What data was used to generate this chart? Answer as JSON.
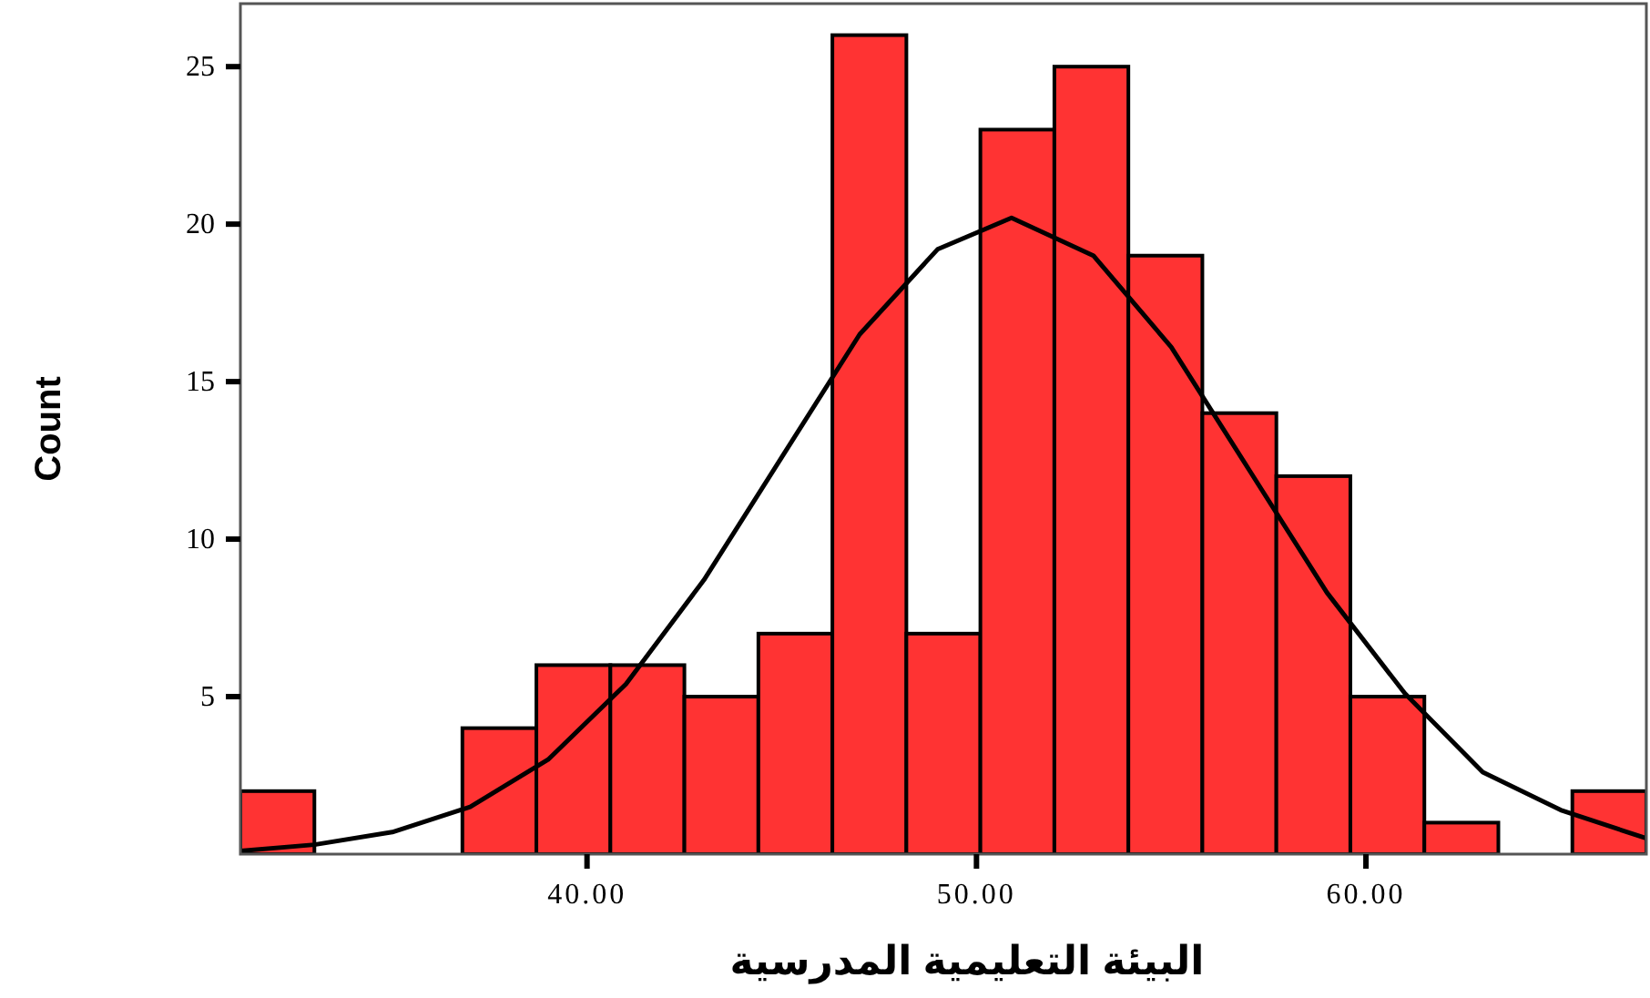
{
  "chart_data": {
    "type": "histogram",
    "xlabel": "البيئة التعليمية المدرسية",
    "ylabel": "Count",
    "bins": [
      31.1,
      33.0,
      34.9,
      36.8,
      38.7,
      40.6,
      42.5,
      44.4,
      46.3,
      48.2,
      50.1,
      52.0,
      53.9,
      55.8,
      57.7,
      59.6,
      61.5,
      63.4,
      65.3,
      67.2
    ],
    "values": [
      2,
      0,
      0,
      4,
      6,
      6,
      5,
      7,
      26,
      7,
      23,
      25,
      19,
      14,
      12,
      5,
      1,
      0,
      2
    ],
    "color": "#ff3333",
    "series": [
      {
        "type": "line",
        "color": "#000000",
        "x": [
          31.1,
          33,
          35,
          37,
          39,
          41,
          43,
          45,
          47,
          49,
          50.9,
          53,
          55,
          57,
          59,
          61,
          63,
          65,
          67.2
        ],
        "values": [
          0.1,
          0.3,
          0.7,
          1.5,
          3.0,
          5.4,
          8.7,
          12.6,
          16.5,
          19.2,
          20.2,
          19.0,
          16.1,
          12.2,
          8.3,
          5.1,
          2.6,
          1.4,
          0.5
        ]
      }
    ],
    "xlim": [
      31.1,
      67.2
    ],
    "ylim": [
      0,
      27
    ],
    "xticks": [
      {
        "value": 40,
        "label": "40.00"
      },
      {
        "value": 50,
        "label": "50.00"
      },
      {
        "value": 60,
        "label": "60.00"
      }
    ],
    "yticks": [
      5,
      10,
      15,
      20,
      25
    ]
  }
}
